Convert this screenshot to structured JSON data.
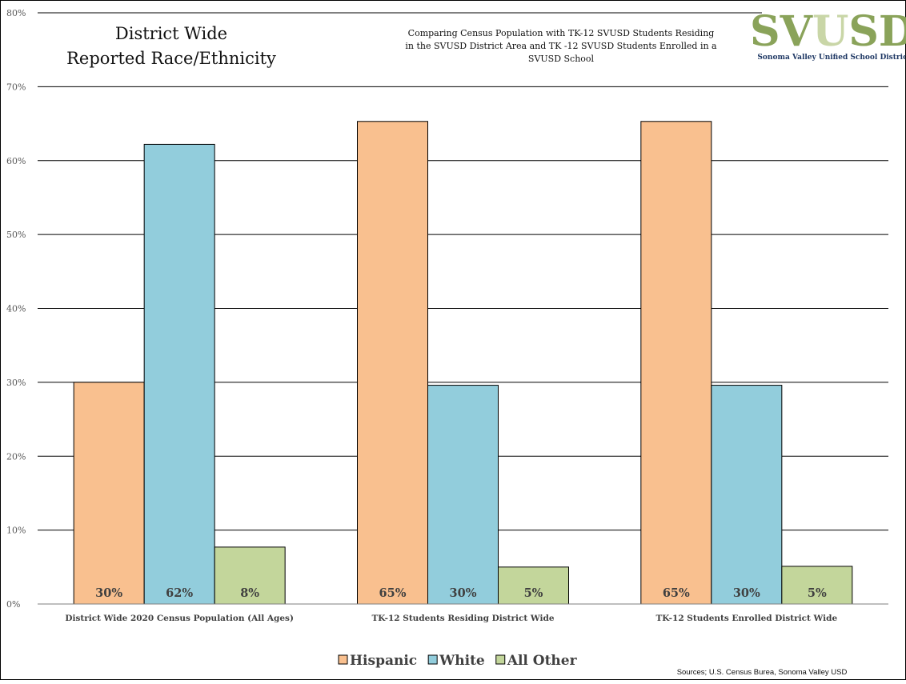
{
  "header": {
    "title_lines": [
      "District Wide",
      "Reported Race/Ethnicity"
    ],
    "subtitle_lines": [
      "Comparing  Census Population  with TK-12 SVUSD Students Residing",
      "in the SVUSD District Area and TK  -12 SVUSD Students Enrolled in a",
      "SVUSD School"
    ]
  },
  "logo": {
    "letters": "SVUSD",
    "caption": "Sonoma Valley Unified School Distric",
    "colors": {
      "main": "#8aa35a",
      "light": "#c9d6a7"
    }
  },
  "source_note": "Sources; U.S. Census Burea, Sonoma Valley USD",
  "chart_data": {
    "type": "bar",
    "categories": [
      "District Wide 2020 Census Population (All Ages)",
      "TK-12 Students Residing District Wide",
      "TK-12 Students Enrolled District Wide"
    ],
    "series": [
      {
        "name": "Hispanic",
        "values": [
          30,
          65.3,
          65.3
        ],
        "labels": [
          "30%",
          "65%",
          "65%"
        ],
        "color": "#f9c08f"
      },
      {
        "name": "White",
        "values": [
          62.2,
          29.6,
          29.6
        ],
        "labels": [
          "62%",
          "30%",
          "30%"
        ],
        "color": "#92cddc"
      },
      {
        "name": "All Other",
        "values": [
          7.7,
          5.0,
          5.1
        ],
        "labels": [
          "8%",
          "5%",
          "5%"
        ],
        "color": "#c3d69b"
      }
    ],
    "ylim": [
      0,
      80
    ],
    "yticks": [
      "0%",
      "10%",
      "20%",
      "30%",
      "40%",
      "50%",
      "60%",
      "70%",
      "80%"
    ],
    "grid": true,
    "legend": "bottom-center"
  }
}
